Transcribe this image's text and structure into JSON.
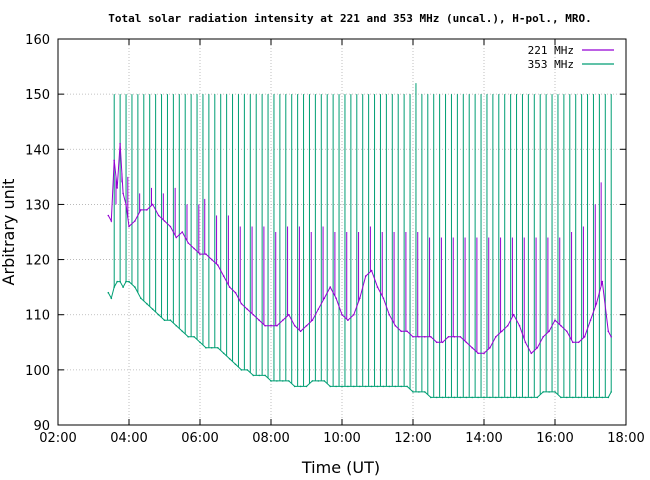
{
  "chart_data": {
    "type": "line",
    "title": "Total solar radiation intensity at 221 and 353 MHz (uncal.), H-pol., MRO.",
    "xlabel": "Time (UT)",
    "ylabel": "Arbitrary unit",
    "xlim": [
      "02:00",
      "18:00"
    ],
    "ylim": [
      90,
      160
    ],
    "xticks": [
      "02:00",
      "04:00",
      "06:00",
      "08:00",
      "10:00",
      "12:00",
      "14:00",
      "16:00",
      "18:00"
    ],
    "yticks": [
      90,
      100,
      110,
      120,
      130,
      140,
      150,
      160
    ],
    "grid": true,
    "legend_position": "top-right",
    "series": [
      {
        "name": "221 MHz",
        "color": "#9400d3",
        "x": [
          "03:25",
          "03:30",
          "03:35",
          "03:40",
          "03:45",
          "03:50",
          "03:55",
          "04:00",
          "04:10",
          "04:20",
          "04:30",
          "04:40",
          "04:50",
          "05:00",
          "05:10",
          "05:20",
          "05:30",
          "05:40",
          "05:50",
          "06:00",
          "06:10",
          "06:20",
          "06:30",
          "06:40",
          "06:50",
          "07:00",
          "07:10",
          "07:20",
          "07:30",
          "07:40",
          "07:50",
          "08:00",
          "08:10",
          "08:20",
          "08:30",
          "08:40",
          "08:50",
          "09:00",
          "09:10",
          "09:20",
          "09:30",
          "09:40",
          "09:50",
          "10:00",
          "10:10",
          "10:20",
          "10:30",
          "10:40",
          "10:50",
          "11:00",
          "11:10",
          "11:20",
          "11:30",
          "11:40",
          "11:50",
          "12:00",
          "12:10",
          "12:20",
          "12:30",
          "12:40",
          "12:50",
          "13:00",
          "13:10",
          "13:20",
          "13:30",
          "13:40",
          "13:50",
          "14:00",
          "14:10",
          "14:20",
          "14:30",
          "14:40",
          "14:50",
          "15:00",
          "15:10",
          "15:20",
          "15:30",
          "15:40",
          "15:50",
          "16:00",
          "16:10",
          "16:20",
          "16:30",
          "16:40",
          "16:50",
          "17:00",
          "17:10",
          "17:20",
          "17:30",
          "17:35"
        ],
        "values": [
          128,
          127,
          138,
          133,
          141,
          132,
          130,
          126,
          127,
          129,
          129,
          130,
          128,
          127,
          126,
          124,
          125,
          123,
          122,
          121,
          121,
          120,
          119,
          117,
          115,
          114,
          112,
          111,
          110,
          109,
          108,
          108,
          108,
          109,
          110,
          108,
          107,
          108,
          109,
          111,
          113,
          115,
          113,
          110,
          109,
          110,
          113,
          117,
          118,
          115,
          113,
          110,
          108,
          107,
          107,
          106,
          106,
          106,
          106,
          105,
          105,
          106,
          106,
          106,
          105,
          104,
          103,
          103,
          104,
          106,
          107,
          108,
          110,
          108,
          105,
          103,
          104,
          106,
          107,
          109,
          108,
          107,
          105,
          105,
          106,
          109,
          112,
          116,
          107,
          106
        ],
        "spikes": [
          {
            "x": "03:38",
            "y": 130
          },
          {
            "x": "03:48",
            "y": 134
          },
          {
            "x": "03:58",
            "y": 135
          },
          {
            "x": "04:18",
            "y": 132
          },
          {
            "x": "04:38",
            "y": 133
          },
          {
            "x": "04:58",
            "y": 132
          },
          {
            "x": "05:18",
            "y": 133
          },
          {
            "x": "05:38",
            "y": 130
          },
          {
            "x": "05:58",
            "y": 130
          },
          {
            "x": "06:08",
            "y": 131
          },
          {
            "x": "06:28",
            "y": 128
          },
          {
            "x": "06:48",
            "y": 128
          },
          {
            "x": "07:08",
            "y": 126
          },
          {
            "x": "07:28",
            "y": 126
          },
          {
            "x": "07:48",
            "y": 126
          },
          {
            "x": "08:08",
            "y": 125
          },
          {
            "x": "08:28",
            "y": 126
          },
          {
            "x": "08:48",
            "y": 126
          },
          {
            "x": "09:08",
            "y": 125
          },
          {
            "x": "09:28",
            "y": 126
          },
          {
            "x": "09:48",
            "y": 125
          },
          {
            "x": "10:08",
            "y": 125
          },
          {
            "x": "10:28",
            "y": 125
          },
          {
            "x": "10:48",
            "y": 126
          },
          {
            "x": "11:08",
            "y": 125
          },
          {
            "x": "11:28",
            "y": 125
          },
          {
            "x": "11:48",
            "y": 125
          },
          {
            "x": "12:08",
            "y": 125
          },
          {
            "x": "12:28",
            "y": 124
          },
          {
            "x": "12:48",
            "y": 124
          },
          {
            "x": "13:08",
            "y": 124
          },
          {
            "x": "13:28",
            "y": 124
          },
          {
            "x": "13:48",
            "y": 124
          },
          {
            "x": "14:08",
            "y": 124
          },
          {
            "x": "14:28",
            "y": 124
          },
          {
            "x": "14:48",
            "y": 124
          },
          {
            "x": "15:08",
            "y": 124
          },
          {
            "x": "15:28",
            "y": 124
          },
          {
            "x": "15:48",
            "y": 124
          },
          {
            "x": "16:08",
            "y": 124
          },
          {
            "x": "16:28",
            "y": 125
          },
          {
            "x": "16:48",
            "y": 126
          },
          {
            "x": "17:08",
            "y": 130
          },
          {
            "x": "17:18",
            "y": 134
          }
        ]
      },
      {
        "name": "353 MHz",
        "color": "#009e73",
        "x": [
          "03:25",
          "03:30",
          "03:35",
          "03:40",
          "03:45",
          "03:50",
          "03:55",
          "04:00",
          "04:10",
          "04:20",
          "04:30",
          "04:40",
          "04:50",
          "05:00",
          "05:10",
          "05:20",
          "05:30",
          "05:40",
          "05:50",
          "06:00",
          "06:10",
          "06:20",
          "06:30",
          "06:40",
          "06:50",
          "07:00",
          "07:10",
          "07:20",
          "07:30",
          "07:40",
          "07:50",
          "08:00",
          "08:10",
          "08:20",
          "08:30",
          "08:40",
          "08:50",
          "09:00",
          "09:10",
          "09:20",
          "09:30",
          "09:40",
          "09:50",
          "10:00",
          "10:10",
          "10:20",
          "10:30",
          "10:40",
          "10:50",
          "11:00",
          "11:10",
          "11:20",
          "11:30",
          "11:40",
          "11:50",
          "12:00",
          "12:10",
          "12:20",
          "12:30",
          "12:40",
          "12:50",
          "13:00",
          "13:10",
          "13:20",
          "13:30",
          "13:40",
          "13:50",
          "14:00",
          "14:10",
          "14:20",
          "14:30",
          "14:40",
          "14:50",
          "15:00",
          "15:10",
          "15:20",
          "15:30",
          "15:40",
          "15:50",
          "16:00",
          "16:10",
          "16:20",
          "16:30",
          "16:40",
          "16:50",
          "17:00",
          "17:10",
          "17:20",
          "17:30",
          "17:35"
        ],
        "values": [
          114,
          113,
          115,
          116,
          116,
          115,
          116,
          116,
          115,
          113,
          112,
          111,
          110,
          109,
          109,
          108,
          107,
          106,
          106,
          105,
          104,
          104,
          104,
          103,
          102,
          101,
          100,
          100,
          99,
          99,
          99,
          98,
          98,
          98,
          98,
          97,
          97,
          97,
          98,
          98,
          98,
          97,
          97,
          97,
          97,
          97,
          97,
          97,
          97,
          97,
          97,
          97,
          97,
          97,
          97,
          96,
          96,
          96,
          95,
          95,
          95,
          95,
          95,
          95,
          95,
          95,
          95,
          95,
          95,
          95,
          95,
          95,
          95,
          95,
          95,
          95,
          95,
          96,
          96,
          96,
          95,
          95,
          95,
          95,
          95,
          95,
          95,
          95,
          95,
          96
        ],
        "spikes": [
          {
            "x": "03:35",
            "y": 150
          },
          {
            "x": "03:45",
            "y": 150
          },
          {
            "x": "03:55",
            "y": 150
          },
          {
            "x": "04:05",
            "y": 150
          },
          {
            "x": "04:15",
            "y": 150
          },
          {
            "x": "04:25",
            "y": 150
          },
          {
            "x": "04:35",
            "y": 150
          },
          {
            "x": "04:45",
            "y": 150
          },
          {
            "x": "04:55",
            "y": 150
          },
          {
            "x": "05:05",
            "y": 150
          },
          {
            "x": "05:15",
            "y": 150
          },
          {
            "x": "05:25",
            "y": 150
          },
          {
            "x": "05:35",
            "y": 150
          },
          {
            "x": "05:45",
            "y": 150
          },
          {
            "x": "05:55",
            "y": 150
          },
          {
            "x": "06:05",
            "y": 150
          },
          {
            "x": "06:15",
            "y": 150
          },
          {
            "x": "06:25",
            "y": 150
          },
          {
            "x": "06:35",
            "y": 150
          },
          {
            "x": "06:45",
            "y": 150
          },
          {
            "x": "06:55",
            "y": 150
          },
          {
            "x": "07:05",
            "y": 150
          },
          {
            "x": "07:15",
            "y": 150
          },
          {
            "x": "07:25",
            "y": 150
          },
          {
            "x": "07:35",
            "y": 150
          },
          {
            "x": "07:45",
            "y": 150
          },
          {
            "x": "07:55",
            "y": 150
          },
          {
            "x": "08:05",
            "y": 150
          },
          {
            "x": "08:15",
            "y": 150
          },
          {
            "x": "08:25",
            "y": 150
          },
          {
            "x": "08:35",
            "y": 150
          },
          {
            "x": "08:45",
            "y": 150
          },
          {
            "x": "08:55",
            "y": 150
          },
          {
            "x": "09:05",
            "y": 150
          },
          {
            "x": "09:15",
            "y": 150
          },
          {
            "x": "09:25",
            "y": 150
          },
          {
            "x": "09:35",
            "y": 150
          },
          {
            "x": "09:45",
            "y": 150
          },
          {
            "x": "09:55",
            "y": 150
          },
          {
            "x": "10:05",
            "y": 150
          },
          {
            "x": "10:15",
            "y": 150
          },
          {
            "x": "10:25",
            "y": 150
          },
          {
            "x": "10:35",
            "y": 150
          },
          {
            "x": "10:45",
            "y": 150
          },
          {
            "x": "10:55",
            "y": 150
          },
          {
            "x": "11:05",
            "y": 150
          },
          {
            "x": "11:15",
            "y": 150
          },
          {
            "x": "11:25",
            "y": 150
          },
          {
            "x": "11:35",
            "y": 150
          },
          {
            "x": "11:45",
            "y": 150
          },
          {
            "x": "11:55",
            "y": 150
          },
          {
            "x": "12:05",
            "y": 152
          },
          {
            "x": "12:15",
            "y": 150
          },
          {
            "x": "12:25",
            "y": 150
          },
          {
            "x": "12:35",
            "y": 150
          },
          {
            "x": "12:45",
            "y": 150
          },
          {
            "x": "12:55",
            "y": 150
          },
          {
            "x": "13:05",
            "y": 150
          },
          {
            "x": "13:15",
            "y": 150
          },
          {
            "x": "13:25",
            "y": 150
          },
          {
            "x": "13:35",
            "y": 150
          },
          {
            "x": "13:45",
            "y": 150
          },
          {
            "x": "13:55",
            "y": 150
          },
          {
            "x": "14:05",
            "y": 150
          },
          {
            "x": "14:15",
            "y": 150
          },
          {
            "x": "14:25",
            "y": 150
          },
          {
            "x": "14:35",
            "y": 150
          },
          {
            "x": "14:45",
            "y": 150
          },
          {
            "x": "14:55",
            "y": 150
          },
          {
            "x": "15:05",
            "y": 150
          },
          {
            "x": "15:15",
            "y": 150
          },
          {
            "x": "15:25",
            "y": 150
          },
          {
            "x": "15:35",
            "y": 150
          },
          {
            "x": "15:45",
            "y": 150
          },
          {
            "x": "15:55",
            "y": 150
          },
          {
            "x": "16:05",
            "y": 150
          },
          {
            "x": "16:15",
            "y": 150
          },
          {
            "x": "16:25",
            "y": 150
          },
          {
            "x": "16:35",
            "y": 150
          },
          {
            "x": "16:45",
            "y": 150
          },
          {
            "x": "16:55",
            "y": 150
          },
          {
            "x": "17:05",
            "y": 150
          },
          {
            "x": "17:15",
            "y": 150
          },
          {
            "x": "17:25",
            "y": 150
          },
          {
            "x": "17:35",
            "y": 150
          }
        ]
      }
    ]
  }
}
